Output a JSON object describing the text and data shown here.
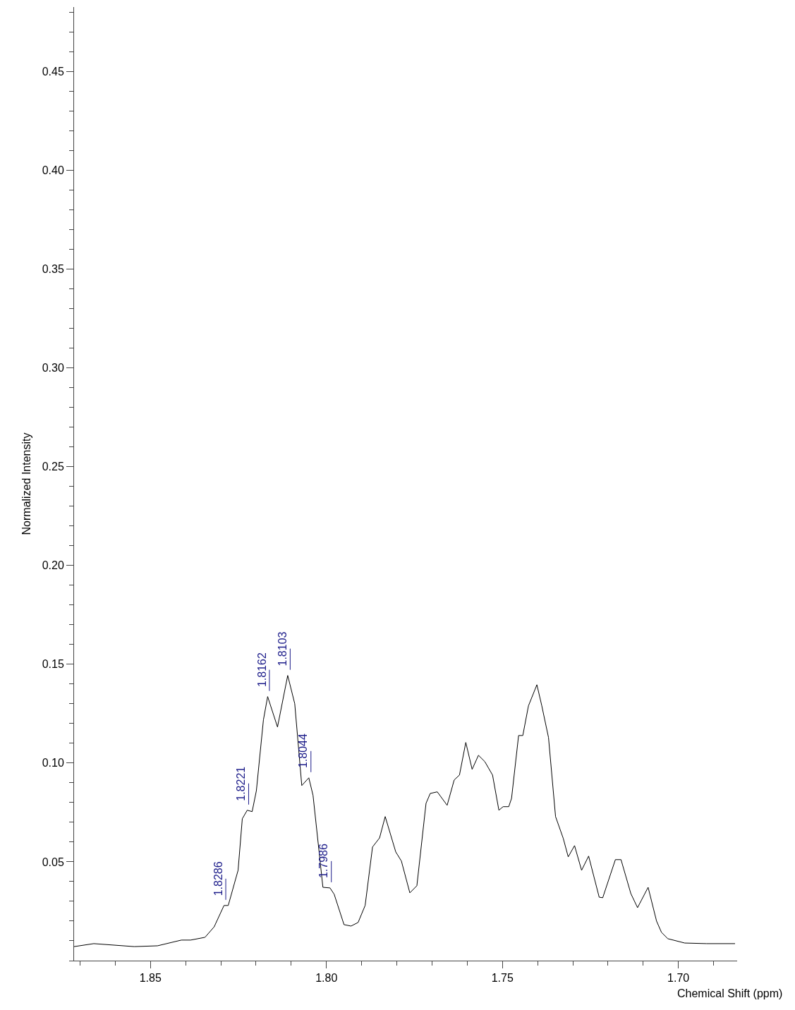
{
  "chart_data": {
    "type": "line",
    "xlabel": "Chemical Shift (ppm)",
    "ylabel": "Normalized Intensity",
    "x": [
      1.8717,
      1.8661,
      1.8546,
      1.848,
      1.8412,
      1.8386,
      1.8345,
      1.8319,
      1.8291,
      1.8279,
      1.8251,
      1.8239,
      1.8225,
      1.8211,
      1.8199,
      1.8179,
      1.8167,
      1.8139,
      1.811,
      1.809,
      1.807,
      1.805,
      1.8038,
      1.801,
      1.799,
      1.7978,
      1.795,
      1.793,
      1.791,
      1.789,
      1.7869,
      1.7849,
      1.7833,
      1.7803,
      1.7787,
      1.7763,
      1.7743,
      1.7717,
      1.7705,
      1.7685,
      1.7657,
      1.7637,
      1.7622,
      1.7604,
      1.7586,
      1.7568,
      1.755,
      1.7528,
      1.751,
      1.7498,
      1.7482,
      1.7474,
      1.7454,
      1.7442,
      1.7426,
      1.7402,
      1.7388,
      1.7369,
      1.7349,
      1.7327,
      1.7313,
      1.7295,
      1.7275,
      1.7255,
      1.7225,
      1.7215,
      1.7179,
      1.7163,
      1.7135,
      1.7116,
      1.7086,
      1.7062,
      1.7048,
      1.703,
      1.6982,
      1.692,
      1.6851,
      1.6839
    ],
    "series": [
      {
        "color": "#000000",
        "values": [
          0.0071,
          0.0086,
          0.0071,
          0.0075,
          0.0104,
          0.0104,
          0.0118,
          0.0171,
          0.0279,
          0.0279,
          0.0457,
          0.0718,
          0.0761,
          0.0754,
          0.086,
          0.1218,
          0.1336,
          0.1182,
          0.1443,
          0.13,
          0.0886,
          0.0925,
          0.0836,
          0.0371,
          0.0368,
          0.0336,
          0.0182,
          0.0175,
          0.0193,
          0.0279,
          0.0575,
          0.0621,
          0.0729,
          0.055,
          0.0504,
          0.0343,
          0.0379,
          0.0796,
          0.0846,
          0.0854,
          0.0786,
          0.0914,
          0.0939,
          0.1104,
          0.0968,
          0.1039,
          0.1007,
          0.0939,
          0.0761,
          0.0779,
          0.0779,
          0.0821,
          0.1139,
          0.1139,
          0.1289,
          0.1396,
          0.1289,
          0.1129,
          0.0729,
          0.0618,
          0.0525,
          0.0582,
          0.0457,
          0.0529,
          0.0321,
          0.0318,
          0.0511,
          0.0511,
          0.0339,
          0.0268,
          0.0371,
          0.02,
          0.0143,
          0.0111,
          0.0089,
          0.0086,
          0.0086,
          0.0086
        ]
      }
    ],
    "annotations": [
      {
        "text": "1.8286",
        "x": 1.8286,
        "y": 0.0279
      },
      {
        "text": "1.8221",
        "x": 1.8221,
        "y": 0.0761
      },
      {
        "text": "1.8162",
        "x": 1.8162,
        "y": 0.1336
      },
      {
        "text": "1.8103",
        "x": 1.8103,
        "y": 0.1443
      },
      {
        "text": "1.8044",
        "x": 1.8044,
        "y": 0.0925
      },
      {
        "text": "1.7986",
        "x": 1.7986,
        "y": 0.0368
      }
    ],
    "xlim": [
      1.8717,
      1.6833
    ],
    "xticks": [
      {
        "value": 1.85,
        "label": "1.85"
      },
      {
        "value": 1.8,
        "label": "1.80"
      },
      {
        "value": 1.75,
        "label": "1.75"
      },
      {
        "value": 1.7,
        "label": "1.70"
      }
    ],
    "ylim": [
      0,
      0.4825
    ],
    "yticks": [
      {
        "value": 0.05,
        "label": "0.05"
      },
      {
        "value": 0.1,
        "label": "0.10"
      },
      {
        "value": 0.15,
        "label": "0.15"
      },
      {
        "value": 0.2,
        "label": "0.20"
      },
      {
        "value": 0.25,
        "label": "0.25"
      },
      {
        "value": 0.3,
        "label": "0.30"
      },
      {
        "value": 0.35,
        "label": "0.35"
      },
      {
        "value": 0.4,
        "label": "0.40"
      },
      {
        "value": 0.45,
        "label": "0.45"
      }
    ],
    "marker": "none",
    "line_style": "solid"
  }
}
